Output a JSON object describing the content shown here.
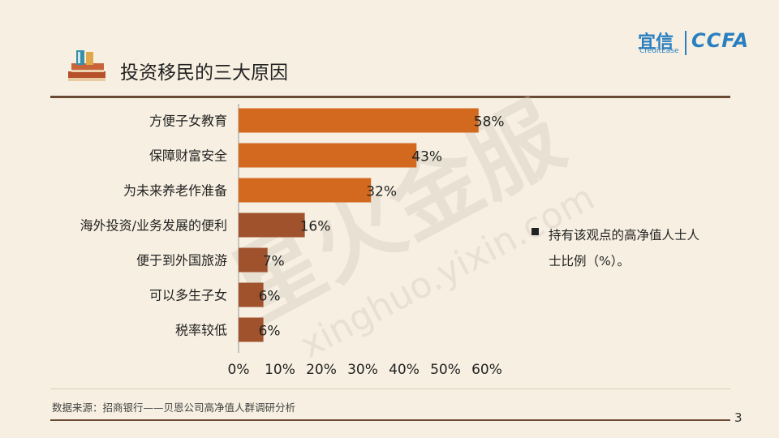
{
  "header": {
    "title": "投资移民的三大原因"
  },
  "logo": {
    "primary": "宜信",
    "secondary": "CreditEase",
    "brand": "CCFA"
  },
  "watermark": {
    "text": "星火金服",
    "url": "xinghuo.yixin.com"
  },
  "chart_data": {
    "type": "bar",
    "orientation": "horizontal",
    "categories": [
      "方便子女教育",
      "保障财富安全",
      "为未来养老作准备",
      "海外投资/业务发展的便利",
      "便于到外国旅游",
      "可以多生子女",
      "税率较低"
    ],
    "values": [
      58,
      43,
      32,
      16,
      7,
      6,
      6
    ],
    "value_labels": [
      "58%",
      "43%",
      "32%",
      "16%",
      "7%",
      "6%",
      "6%"
    ],
    "bar_colors": [
      "#d2691e",
      "#d2691e",
      "#d2691e",
      "#a0522d",
      "#a0522d",
      "#a0522d",
      "#a0522d"
    ],
    "xlim": [
      0,
      60
    ],
    "x_ticks": [
      "0%",
      "10%",
      "20%",
      "30%",
      "40%",
      "50%",
      "60%"
    ],
    "grid": false,
    "legend": {
      "text": "持有该观点的高净值人士人士比例（%）。",
      "placement": "right"
    }
  },
  "footer": {
    "source": "数据来源：招商银行——贝恩公司高净值人群调研分析",
    "page": "3"
  }
}
